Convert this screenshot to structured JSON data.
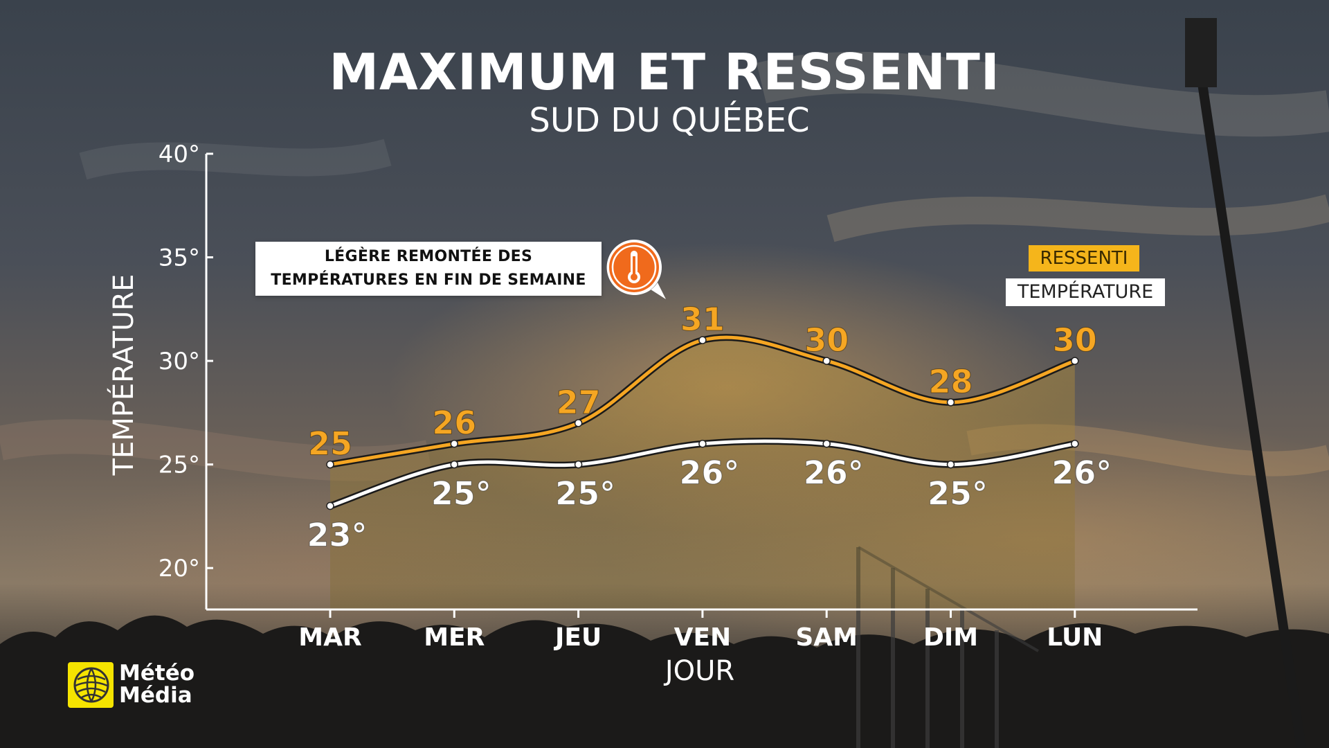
{
  "header": {
    "title": "MAXIMUM ET RESSENTI",
    "subtitle": "SUD DU QUÉBEC"
  },
  "callout": {
    "text": "LÉGÈRE REMONTÉE DES\nTEMPÉRATURES EN FIN DE SEMAINE",
    "icon": "thermometer-icon",
    "color": "#f06a1c"
  },
  "legend": {
    "feels_like": "RESSENTI",
    "temperature": "TEMPÉRATURE"
  },
  "logo": {
    "line1": "Météo",
    "line2": "Média"
  },
  "colors": {
    "feels_like": "#f5a623",
    "temperature": "#ffffff",
    "legend_feels_bg": "#f5b51b",
    "callout_accent": "#f06a1c"
  },
  "chart_data": {
    "type": "line",
    "title": "MAXIMUM ET RESSENTI",
    "subtitle": "SUD DU QUÉBEC",
    "xlabel": "JOUR",
    "ylabel": "TEMPÉRATURE",
    "categories": [
      "MAR",
      "MER",
      "JEU",
      "VEN",
      "SAM",
      "DIM",
      "LUN"
    ],
    "ylim": [
      18,
      40
    ],
    "yticks": [
      20,
      25,
      30,
      35,
      40
    ],
    "ytick_labels": [
      "20°",
      "25°",
      "30°",
      "35°",
      "40°"
    ],
    "legend_position": "top-right",
    "grid": false,
    "series": [
      {
        "name": "RESSENTI",
        "values": [
          25,
          26,
          27,
          31,
          30,
          28,
          30
        ],
        "labels": [
          "25",
          "26",
          "27",
          "31",
          "30",
          "28",
          "30"
        ],
        "color": "#f5a623"
      },
      {
        "name": "TEMPÉRATURE",
        "values": [
          23,
          25,
          25,
          26,
          26,
          25,
          26
        ],
        "labels": [
          "23°",
          "25°",
          "25°",
          "26°",
          "26°",
          "25°",
          "26°"
        ],
        "color": "#ffffff"
      }
    ]
  }
}
